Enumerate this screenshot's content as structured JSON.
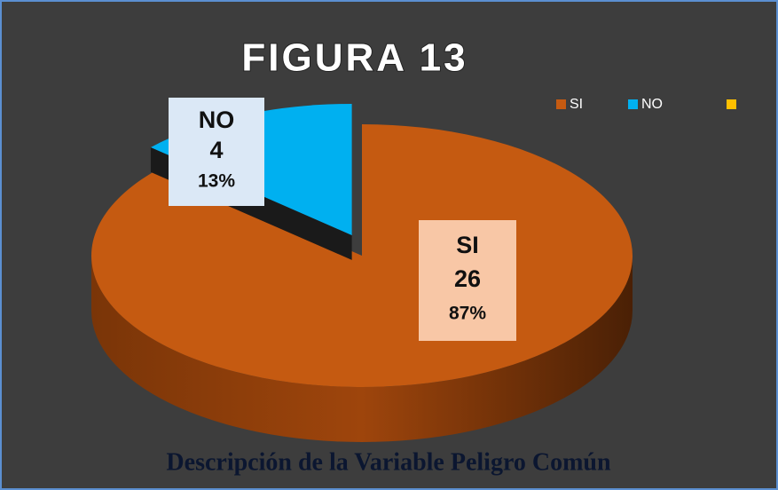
{
  "chart_data": {
    "type": "pie",
    "title": "FIGURA 13",
    "categories": [
      "SI",
      "NO",
      null
    ],
    "values": [
      26,
      4,
      null
    ],
    "percent_labels": [
      "87%",
      "13%",
      null
    ],
    "colors": [
      "#c55a11",
      "#00b0f0",
      "#ffc000"
    ],
    "label_backgrounds": [
      "#f8c7a6",
      "#dbe8f6",
      null
    ],
    "exploded": [
      false,
      true,
      false
    ],
    "legend": "top-right",
    "caption": "Descripción de la Variable Peligro Común"
  }
}
